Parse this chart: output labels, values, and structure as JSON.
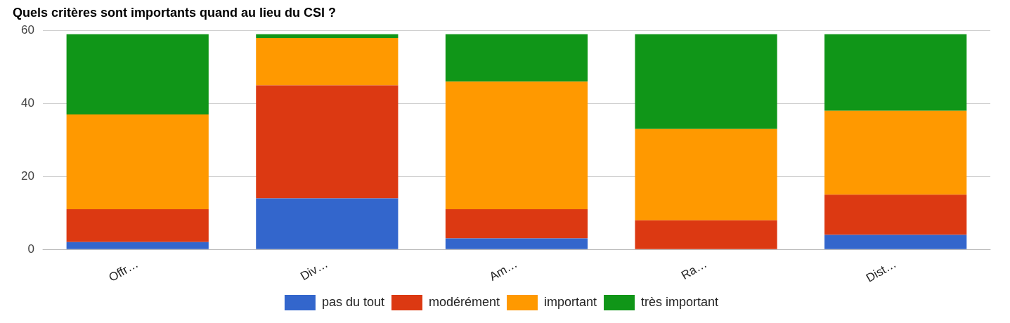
{
  "chart_data": {
    "type": "bar",
    "title": "Quels critères sont importants quand au lieu du CSI ?",
    "categories": [
      "Offr…",
      "Div…",
      "Am…",
      "Ra…",
      "Dist…"
    ],
    "stacked": true,
    "series": [
      {
        "name": "pas du tout",
        "color": "#3366cc",
        "values": [
          2,
          14,
          3,
          0,
          4
        ]
      },
      {
        "name": "modérément",
        "color": "#dc3912",
        "values": [
          9,
          31,
          8,
          8,
          11
        ]
      },
      {
        "name": "important",
        "color": "#ff9900",
        "values": [
          26,
          13,
          35,
          25,
          23
        ]
      },
      {
        "name": "très important",
        "color": "#109618",
        "values": [
          22,
          1,
          13,
          26,
          21
        ]
      }
    ],
    "ylim": [
      0,
      60
    ],
    "yticks": [
      0,
      20,
      40,
      60
    ],
    "grid": "y",
    "legend": "bottom"
  }
}
